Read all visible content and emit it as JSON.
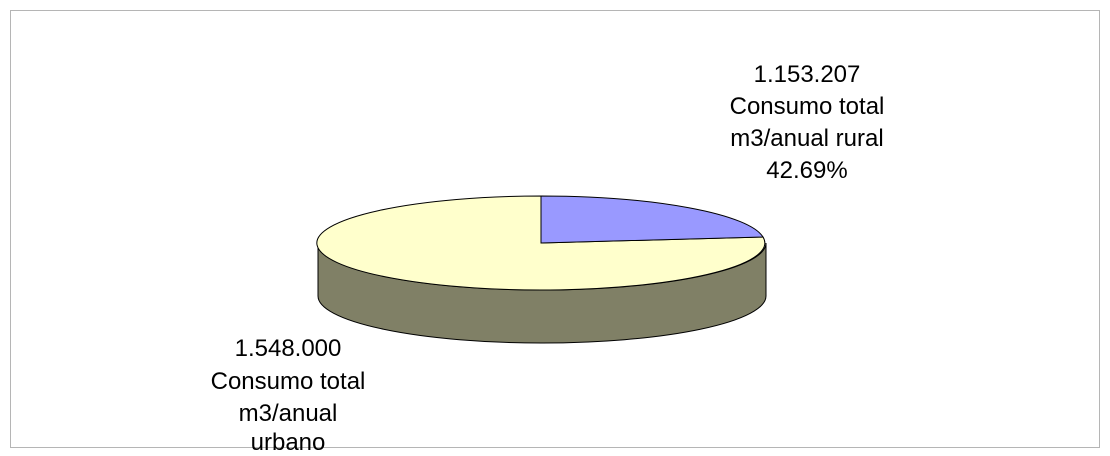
{
  "chart_data": {
    "type": "pie",
    "style": "3d-exploded",
    "title": "",
    "slices": [
      {
        "value_label": "1.153.207",
        "label_lines": [
          "Consumo total",
          "m3/anual rural"
        ],
        "percent_label": "42.69%",
        "value": 1153207,
        "percent": 42.69,
        "color": "#9999ff"
      },
      {
        "value_label": "1.548.000",
        "label_lines": [
          "Consumo total",
          "m3/anual",
          "urbano"
        ],
        "percent_label": "",
        "value": 1548000,
        "color": "#ffffcc"
      }
    ],
    "side_color": "#808066",
    "edge_color": "#000000"
  }
}
